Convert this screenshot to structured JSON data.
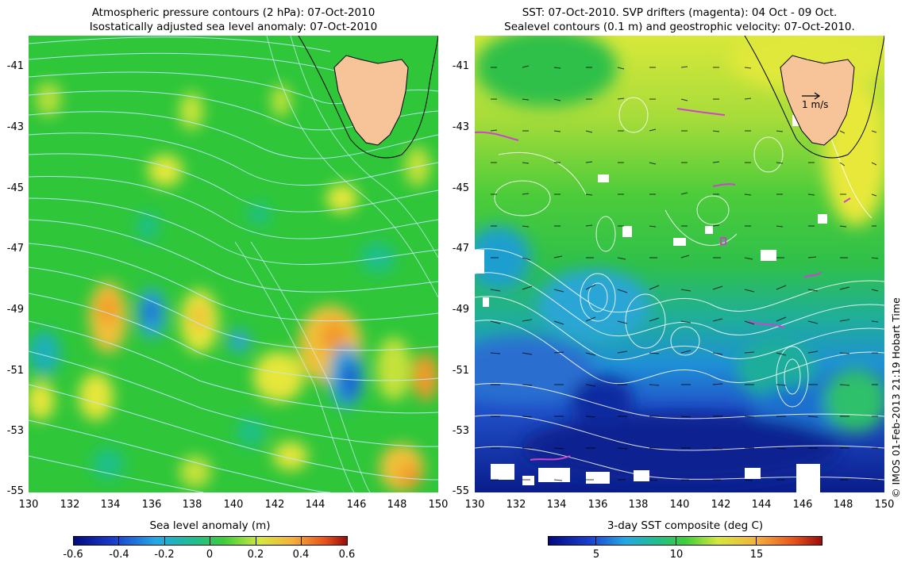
{
  "left_panel": {
    "title_line1": "Atmospheric pressure contours (2 hPa): 07-Oct-2010",
    "title_line2": "Isostatically adjusted sea level anomaly: 07-Oct-2010",
    "colorbar_label": "Sea level anomaly (m)",
    "colorbar_ticks": [
      "-0.6",
      "-0.4",
      "-0.2",
      "0",
      "0.2",
      "0.4",
      "0.6"
    ]
  },
  "right_panel": {
    "title_line1": "SST: 07-Oct-2010. SVP drifters (magenta): 04 Oct - 09 Oct.",
    "title_line2": "Sealevel contours (0.1 m) and geostrophic velocity: 07-Oct-2010.",
    "colorbar_label": "3-day SST composite (deg C)",
    "colorbar_ticks": [
      "5",
      "10",
      "15"
    ],
    "scale_label": "1 m/s"
  },
  "axes": {
    "y_ticks": [
      "-41",
      "-43",
      "-45",
      "-47",
      "-49",
      "-51",
      "-53",
      "-55"
    ],
    "x_ticks": [
      "130",
      "132",
      "134",
      "136",
      "138",
      "140",
      "142",
      "144",
      "146",
      "148",
      "150"
    ],
    "lon_range": [
      130,
      150
    ],
    "lat_range": [
      -55,
      -40
    ]
  },
  "credit": "© IMOS 01-Feb-2013 21:19 Hobart Time",
  "colors": {
    "land": "#f7c49a",
    "drifters": "#cc44cc",
    "pressure_contours": "#bfe8ff",
    "sealevel_contours": "#ffffff"
  }
}
